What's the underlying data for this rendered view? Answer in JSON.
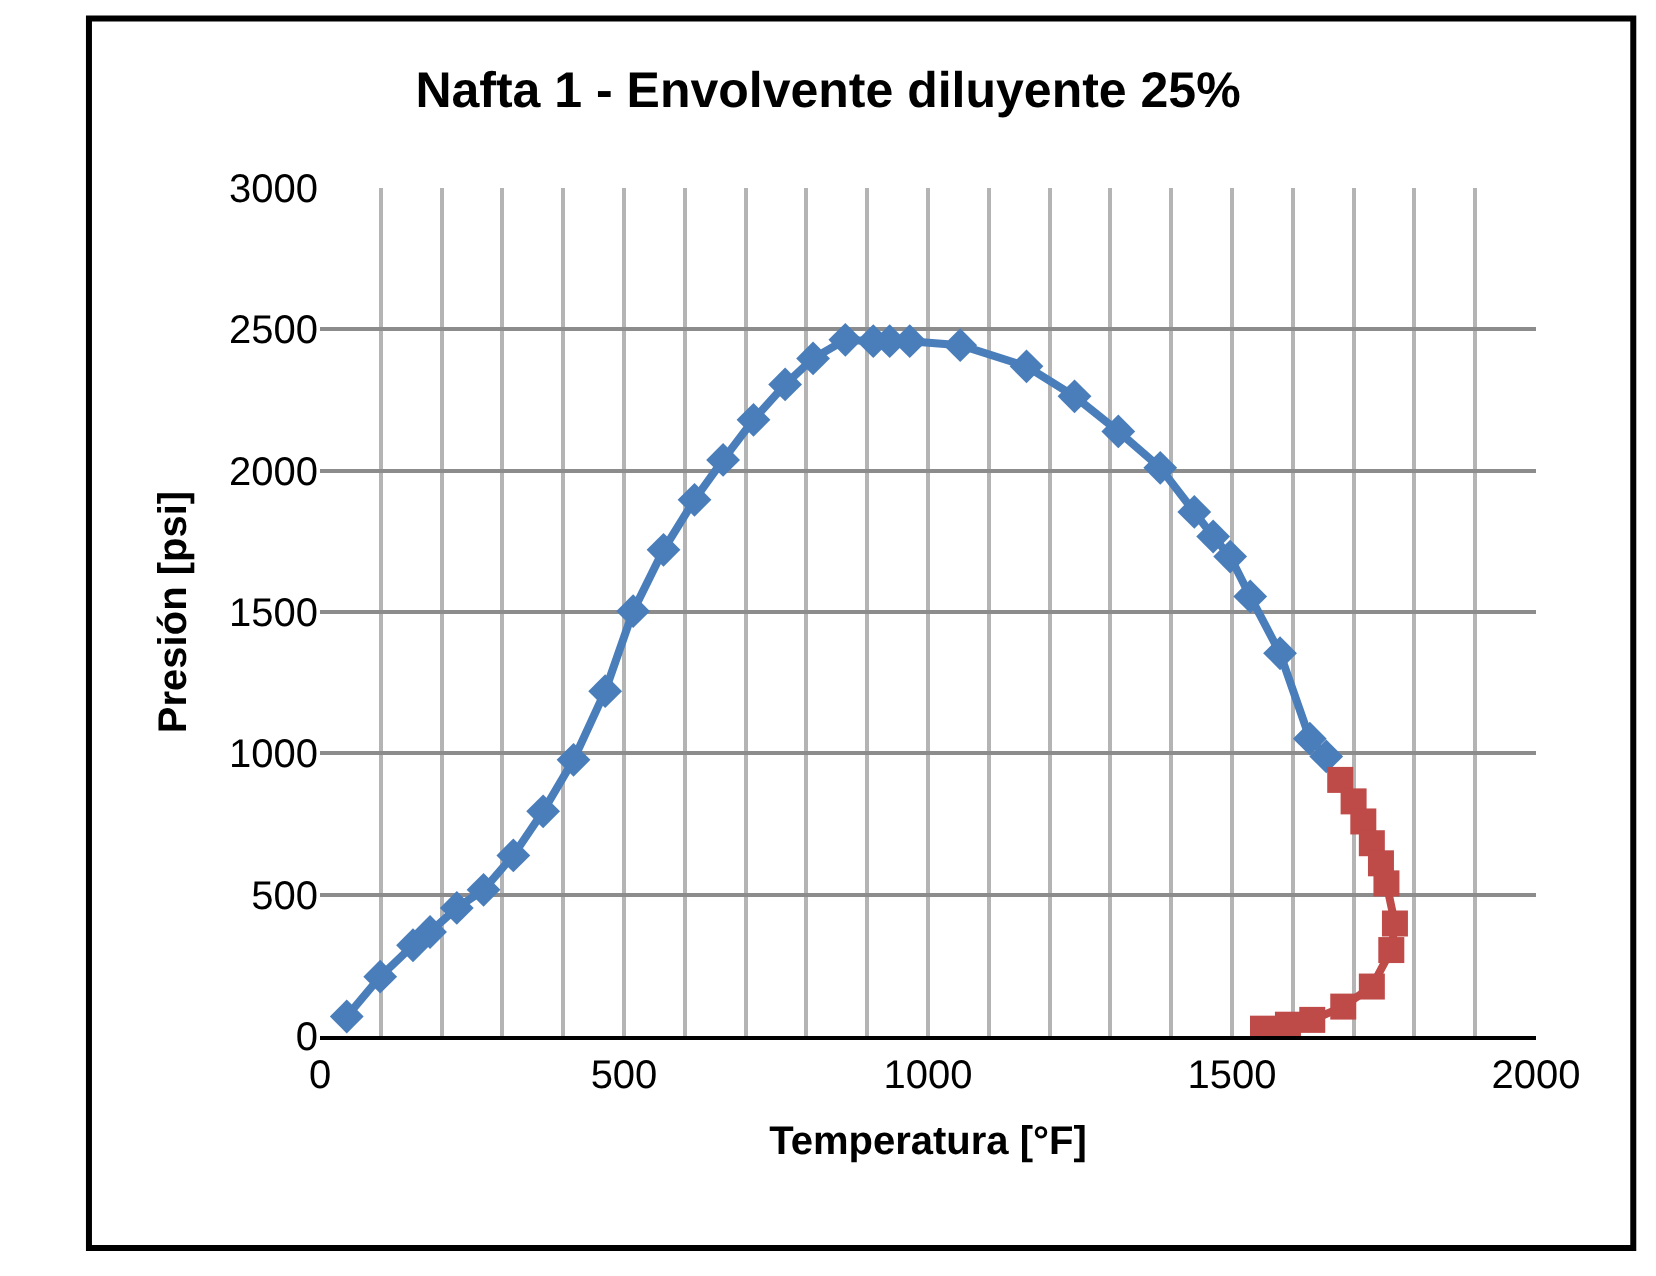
{
  "chart_data": {
    "type": "line",
    "title": "Nafta 1 - Envolvente diluyente 25%",
    "xlabel": "Temperatura [°F]",
    "ylabel": "Presión [psi]",
    "xlim": [
      0,
      2000
    ],
    "ylim": [
      0,
      3000
    ],
    "xticks": [
      0,
      {
        "value": 100,
        "label": null
      },
      {
        "value": 200,
        "label": null
      },
      {
        "value": 300,
        "label": null
      },
      {
        "value": 400,
        "label": null
      },
      500,
      {
        "value": 600,
        "label": null
      },
      {
        "value": 700,
        "label": null
      },
      {
        "value": 800,
        "label": null
      },
      {
        "value": 900,
        "label": null
      },
      1000,
      {
        "value": 1100,
        "label": null
      },
      {
        "value": 1200,
        "label": null
      },
      {
        "value": 1300,
        "label": null
      },
      {
        "value": 1400,
        "label": null
      },
      1500,
      {
        "value": 1600,
        "label": null
      },
      {
        "value": 1700,
        "label": null
      },
      {
        "value": 1800,
        "label": null
      },
      {
        "value": 1900,
        "label": null
      },
      2000
    ],
    "yticks": [
      0,
      500,
      1000,
      1500,
      2000,
      2500,
      3000
    ],
    "grid": true,
    "series": [
      {
        "color": "#4a7ebb",
        "marker": "diamond",
        "x": [
          44,
          99,
          153,
          181,
          225,
          269,
          318,
          367,
          417,
          469,
          515,
          565,
          616,
          663,
          713,
          765,
          811,
          864,
          910,
          937,
          970,
          1053,
          1162,
          1241,
          1313,
          1382,
          1438,
          1469,
          1497,
          1530,
          1579,
          1628,
          1655
        ],
        "values": [
          69,
          210,
          321,
          368,
          453,
          517,
          639,
          795,
          977,
          1220,
          1503,
          1720,
          1897,
          2038,
          2180,
          2305,
          2397,
          2463,
          2458,
          2458,
          2458,
          2444,
          2369,
          2263,
          2139,
          2010,
          1854,
          1767,
          1696,
          1555,
          1354,
          1052,
          989
        ]
      },
      {
        "color": "#be4b48",
        "marker": "square",
        "x": [
          1678,
          1700,
          1716,
          1730,
          1745,
          1754,
          1768,
          1762,
          1730,
          1683,
          1632,
          1592,
          1551
        ],
        "values": [
          906,
          830,
          759,
          682,
          611,
          540,
          398,
          304,
          175,
          104,
          57,
          40,
          26
        ]
      }
    ]
  }
}
